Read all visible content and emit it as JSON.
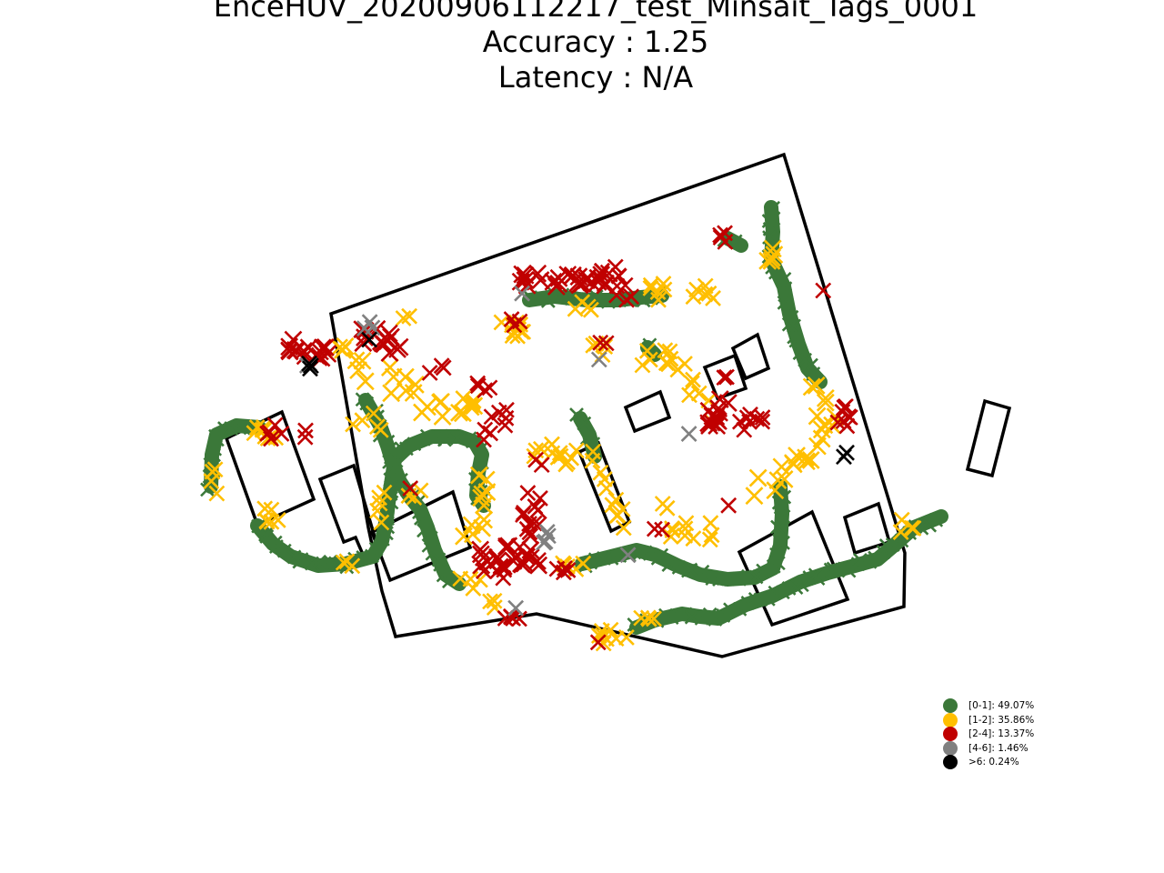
{
  "title_lines": [
    "EnceHUV_20200906112217_test_Minsait_Tags_0001",
    "Accuracy : 1.25",
    "Latency : N/A"
  ],
  "colors": {
    "green": "#3b7839",
    "yellow": "#ffbf00",
    "red": "#c00000",
    "gray": "#808080",
    "black": "#000000",
    "outline": "#000000"
  },
  "legend": [
    {
      "label": "[0-1]: 49.07%",
      "color": "#3b7839"
    },
    {
      "label": "[1-2]: 35.86%",
      "color": "#ffbf00"
    },
    {
      "label": "[2-4]: 13.37%",
      "color": "#c00000"
    },
    {
      "label": "[4-6]: 1.46%",
      "color": "#808080"
    },
    {
      "label": ">6: 0.24%",
      "color": "#000000"
    }
  ],
  "chart_data": {
    "type": "scatter",
    "title": "EnceHUV_20200906112217_test_Minsait_Tags_0001\nAccuracy : 1.25\nLatency : N/A",
    "xlabel": "",
    "ylabel": "",
    "axes_visible": false,
    "grid": false,
    "legend_position": "bottom-right",
    "marker": "x",
    "series": [
      {
        "name": "[0-1]: 49.07%",
        "share_percent": 49.07,
        "color": "#3b7839"
      },
      {
        "name": "[1-2]: 35.86%",
        "share_percent": 35.86,
        "color": "#ffbf00"
      },
      {
        "name": "[2-4]: 13.37%",
        "share_percent": 13.37,
        "color": "#c00000"
      },
      {
        "name": "[4-6]: 1.46%",
        "share_percent": 1.46,
        "color": "#808080"
      },
      {
        "name": ">6: 0.24%",
        "share_percent": 0.24,
        "color": "#000000"
      }
    ]
  }
}
